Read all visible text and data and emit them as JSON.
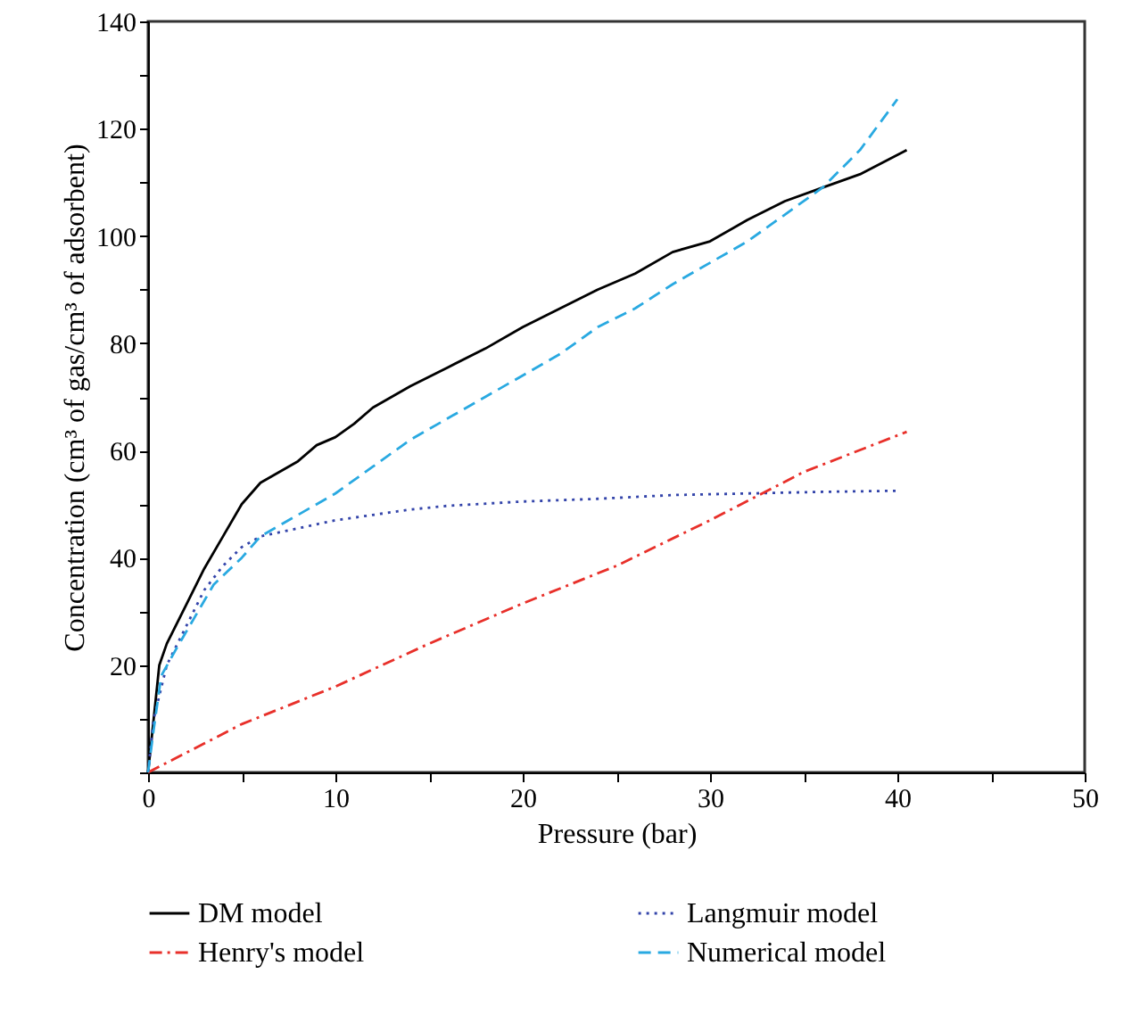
{
  "chart_data": {
    "type": "line",
    "xlabel": "Pressure (bar)",
    "ylabel": "Concentration (cm³ of gas/cm³ of adsorbent)",
    "xlim": [
      0,
      50
    ],
    "ylim": [
      0,
      140
    ],
    "xticks": [
      0,
      {
        "value": 5,
        "label": null
      },
      10,
      {
        "value": 15,
        "label": null
      },
      20,
      {
        "value": 25,
        "label": null
      },
      30,
      {
        "value": 35,
        "label": null
      },
      40,
      {
        "value": 45,
        "label": null
      },
      50
    ],
    "yticks": [
      {
        "value": 0,
        "label": null
      },
      {
        "value": 10,
        "label": null
      },
      20,
      {
        "value": 30,
        "label": null
      },
      40,
      {
        "value": 50,
        "label": null
      },
      60,
      {
        "value": 70,
        "label": null
      },
      80,
      {
        "value": 90,
        "label": null
      },
      100,
      {
        "value": 110,
        "label": null
      },
      120,
      {
        "value": 130,
        "label": null
      },
      140
    ],
    "grid": false,
    "legend": "bottom",
    "series": [
      {
        "name": "DM model",
        "color": "#000000",
        "line_style": "solid",
        "x": [
          0,
          0.3,
          0.6,
          1,
          2,
          3,
          4,
          5,
          6,
          7,
          8,
          9,
          10,
          11,
          12,
          14,
          16,
          18,
          20,
          22,
          24,
          26,
          28,
          30,
          32,
          34,
          36,
          38,
          40.5
        ],
        "values": [
          0,
          10,
          20,
          24,
          31,
          38,
          44,
          50,
          54,
          56,
          58,
          61,
          62.5,
          65,
          68,
          72,
          75.5,
          79,
          83,
          86.5,
          90,
          93,
          97,
          99,
          103,
          106.5,
          109,
          111.5,
          116
        ]
      },
      {
        "name": "Langmuir model",
        "color": "#3344aa",
        "line_style": "dotted",
        "x": [
          0,
          0.3,
          1,
          2,
          3,
          4,
          5,
          6,
          8,
          10,
          12,
          14,
          16,
          20,
          24,
          28,
          32,
          36,
          40
        ],
        "values": [
          0,
          10,
          20,
          27,
          34,
          38.5,
          42,
          44,
          45.5,
          47,
          48,
          49,
          49.7,
          50.5,
          51,
          51.7,
          52,
          52.3,
          52.5
        ]
      },
      {
        "name": "Henry's model",
        "color": "#e8302a",
        "line_style": "dashdot",
        "x": [
          0,
          5,
          10,
          15,
          20,
          25,
          30,
          35,
          40.5
        ],
        "values": [
          0,
          9,
          16,
          24,
          31.5,
          38.5,
          47,
          56,
          63.5
        ]
      },
      {
        "name": "Numerical model",
        "color": "#29a9e1",
        "line_style": "dashed",
        "x": [
          0,
          0.3,
          0.7,
          1.5,
          2.5,
          3.5,
          5,
          6,
          8,
          10,
          12,
          14,
          16,
          18,
          20,
          22,
          24,
          26,
          28,
          30,
          32,
          34,
          36,
          38,
          40
        ],
        "values": [
          0,
          8,
          18,
          23,
          29,
          35,
          40,
          44,
          48,
          52,
          57,
          62,
          66,
          70,
          74,
          78,
          83,
          86.5,
          91,
          95,
          99,
          104,
          109,
          116,
          125.5
        ]
      }
    ]
  }
}
